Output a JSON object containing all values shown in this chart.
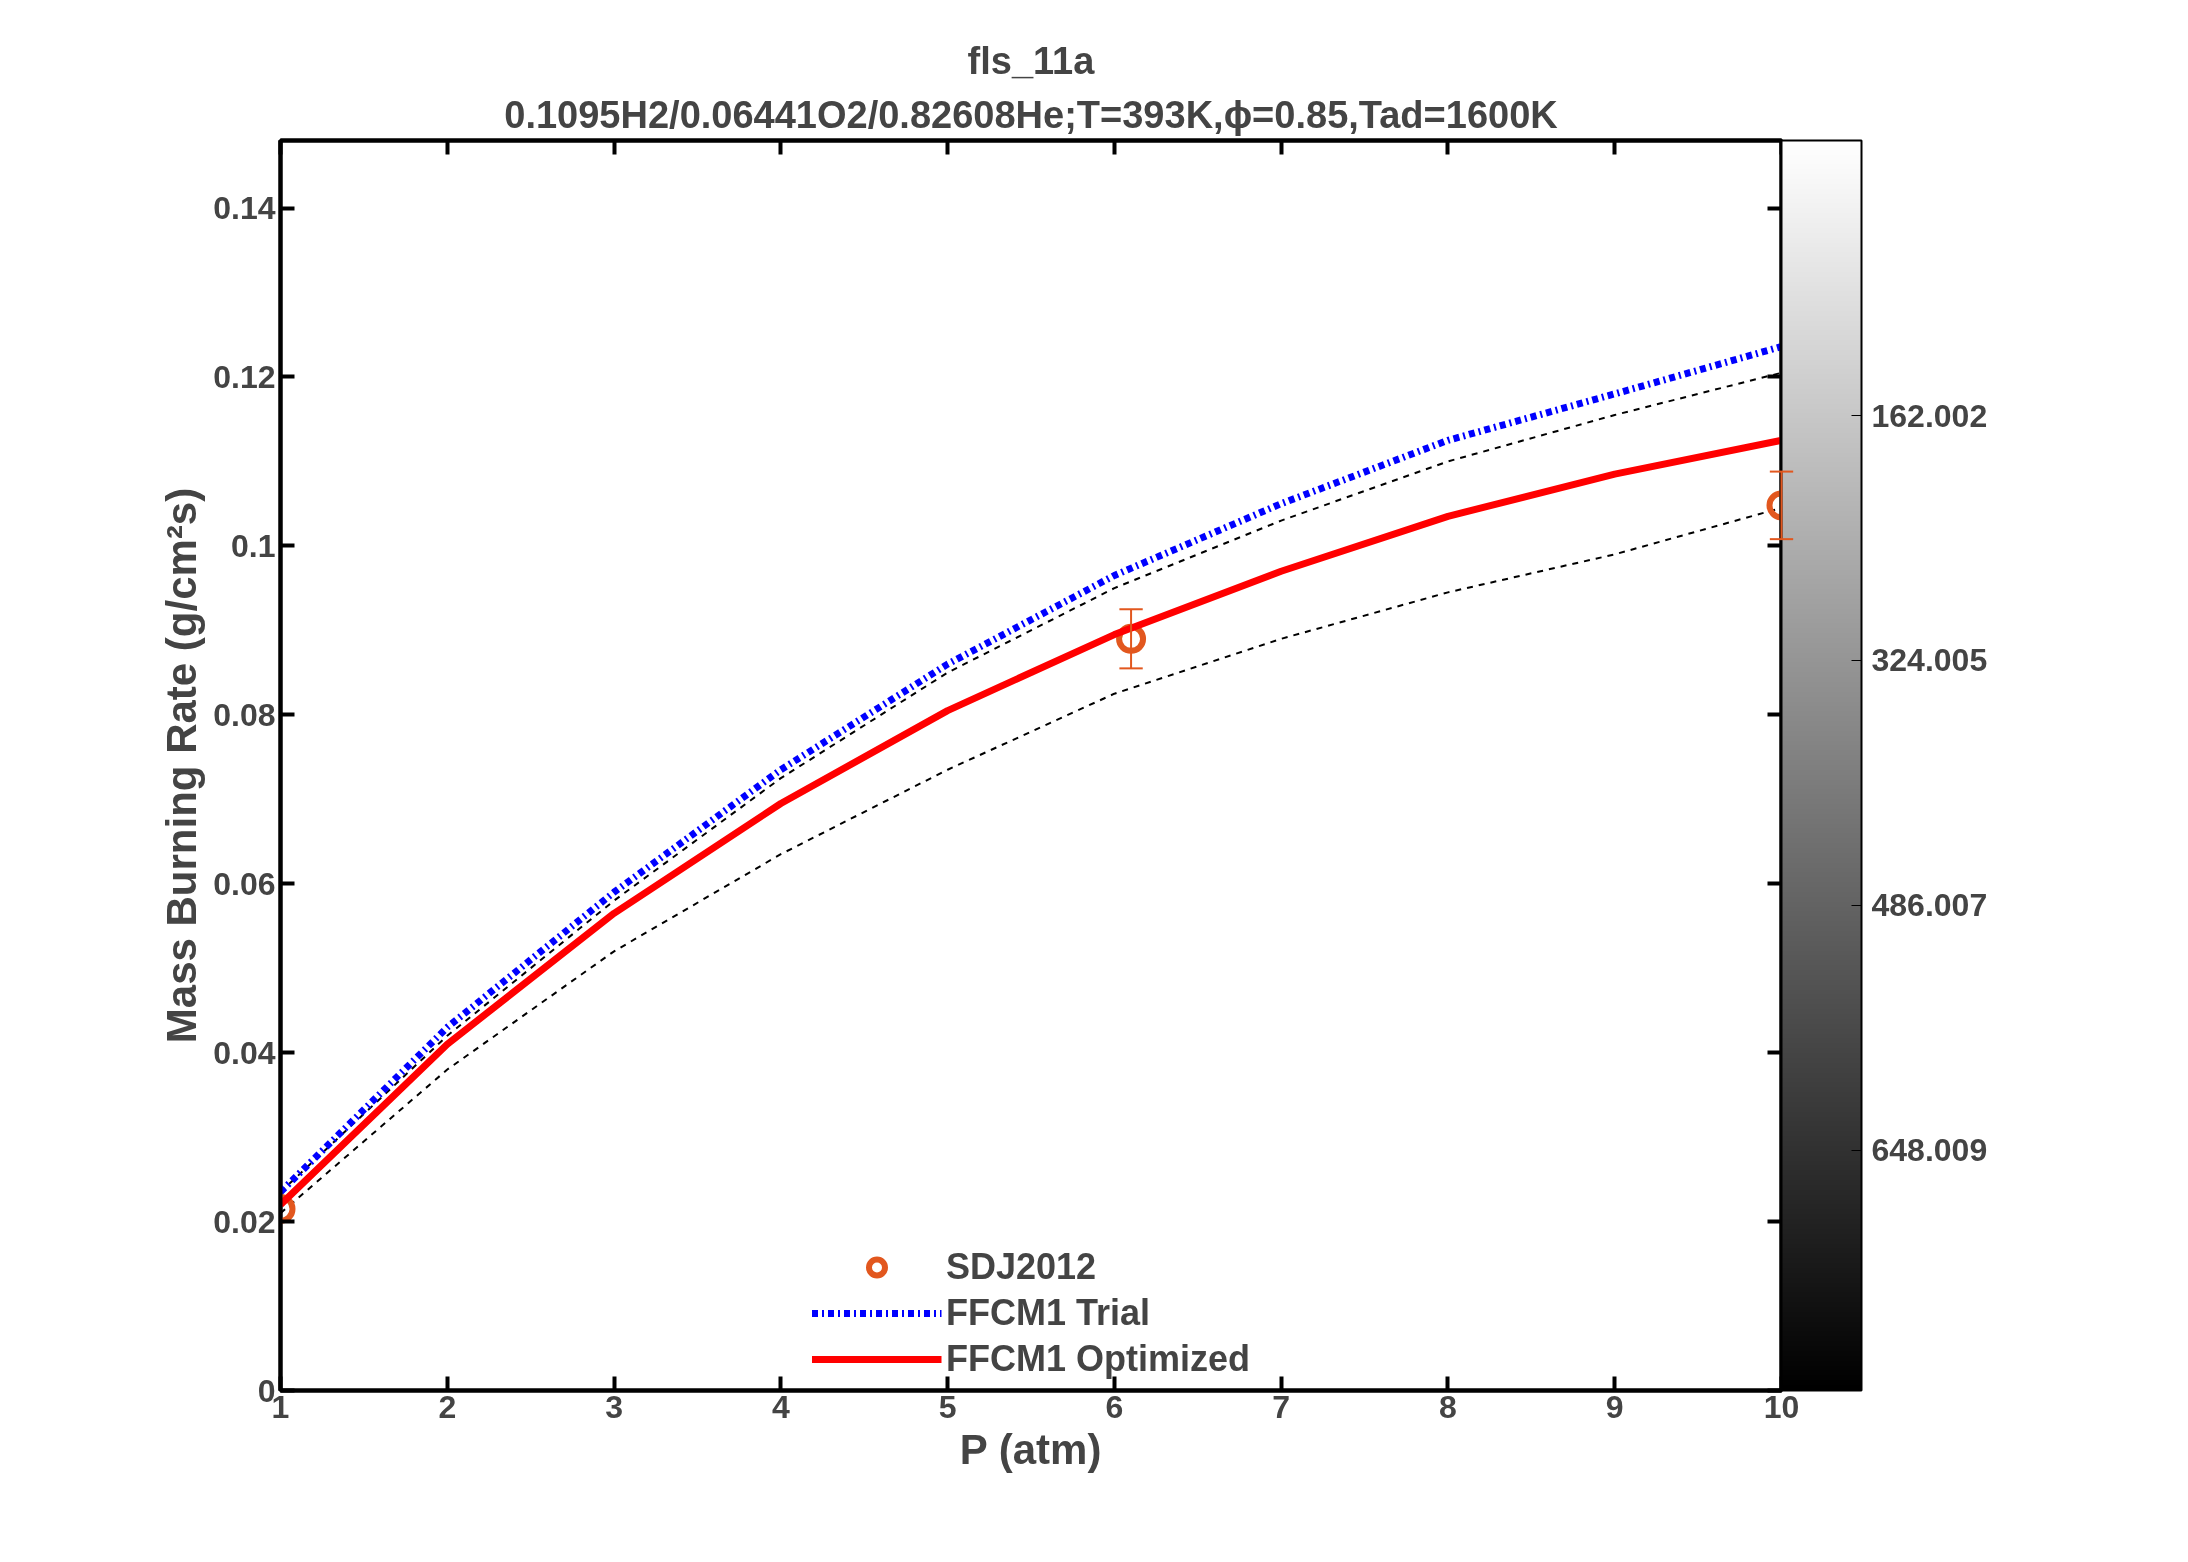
{
  "chart_data": {
    "type": "line",
    "title": "fls_11a",
    "subtitle": "0.1095H2/0.06441O2/0.82608He;T=393K,ϕ=0.85,Tad=1600K",
    "xlabel": "P (atm)",
    "ylabel": "Mass Burning Rate (g/cm²s)",
    "x": [
      1,
      2,
      3,
      4,
      5,
      6,
      7,
      8,
      9,
      10
    ],
    "series": [
      {
        "color": "#000000",
        "line_style": "dashed",
        "values": [
          0.0235,
          0.042,
          0.058,
          0.0725,
          0.085,
          0.095,
          0.103,
          0.11,
          0.1155,
          0.1205
        ]
      },
      {
        "color": "#000000",
        "line_style": "dashed",
        "values": [
          0.021,
          0.038,
          0.052,
          0.0635,
          0.0735,
          0.0825,
          0.089,
          0.0945,
          0.099,
          0.1045
        ]
      },
      {
        "type": "scatter",
        "name": "SDJ2012",
        "color": "#e2571e",
        "marker": "circle",
        "x": [
          1,
          6.1,
          10
        ],
        "values": [
          0.0215,
          0.089,
          0.1048
        ],
        "errors": [
          null,
          0.0035,
          0.004
        ]
      },
      {
        "name": "FFCM1 Trial",
        "color": "#0000ff",
        "line_style": "dashdot",
        "values": [
          0.0235,
          0.043,
          0.059,
          0.0735,
          0.086,
          0.0965,
          0.105,
          0.1125,
          0.118,
          0.1236
        ]
      },
      {
        "name": "FFCM1 Optimized",
        "color": "#ff0000",
        "line_style": "solid",
        "values": [
          0.022,
          0.041,
          0.0565,
          0.0695,
          0.0805,
          0.0895,
          0.097,
          0.1035,
          0.1085,
          0.1125
        ]
      }
    ],
    "xlim": [
      1,
      10
    ],
    "xticks": [
      1,
      2,
      3,
      4,
      5,
      6,
      7,
      8,
      9,
      10
    ],
    "ylim": [
      0,
      0.148
    ],
    "yticks": [
      0,
      0.02,
      0.04,
      0.06,
      0.08,
      0.1,
      0.12,
      0.14
    ],
    "clim": [
      807,
      -20
    ],
    "cticks": [
      162.002,
      324.005,
      486.007,
      648.009
    ],
    "grid": false,
    "legend": "bottom"
  }
}
